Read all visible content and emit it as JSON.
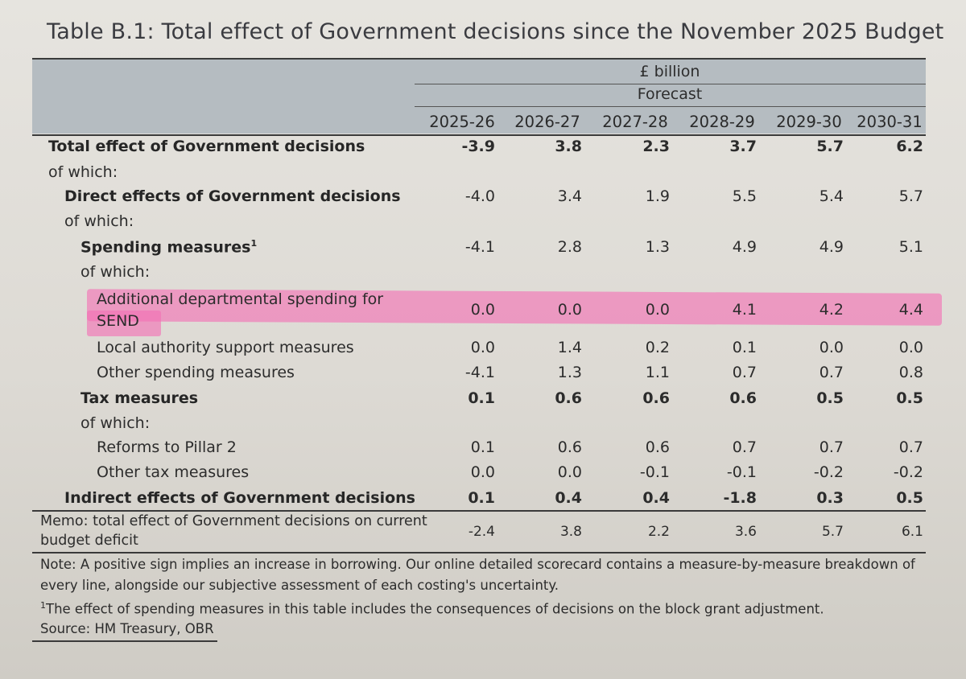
{
  "title": "Table B.1: Total effect of Government decisions since the November 2025 Budget",
  "header": {
    "units": "£ billion",
    "forecast": "Forecast",
    "years": [
      "2025-26",
      "2026-27",
      "2027-28",
      "2028-29",
      "2029-30",
      "2030-31"
    ]
  },
  "rows": [
    {
      "label": "Total effect of Government decisions",
      "values": [
        "-3.9",
        "3.8",
        "2.3",
        "3.7",
        "5.7",
        "6.2"
      ]
    },
    {
      "label": "of which:"
    },
    {
      "label": "Direct effects of Government decisions",
      "values": [
        "-4.0",
        "3.4",
        "1.9",
        "5.5",
        "5.4",
        "5.7"
      ]
    },
    {
      "label": "of which:"
    },
    {
      "label": "Spending measures",
      "sup": "1",
      "values": [
        "-4.1",
        "2.8",
        "1.3",
        "4.9",
        "4.9",
        "5.1"
      ]
    },
    {
      "label": "of which:"
    },
    {
      "label": "Additional departmental spending for",
      "label2": "SEND",
      "values": [
        "0.0",
        "0.0",
        "0.0",
        "4.1",
        "4.2",
        "4.4"
      ]
    },
    {
      "label": "Local authority support measures",
      "values": [
        "0.0",
        "1.4",
        "0.2",
        "0.1",
        "0.0",
        "0.0"
      ]
    },
    {
      "label": "Other spending measures",
      "values": [
        "-4.1",
        "1.3",
        "1.1",
        "0.7",
        "0.7",
        "0.8"
      ]
    },
    {
      "label": "Tax measures",
      "values": [
        "0.1",
        "0.6",
        "0.6",
        "0.6",
        "0.5",
        "0.5"
      ]
    },
    {
      "label": "of which:"
    },
    {
      "label": "Reforms to Pillar 2",
      "values": [
        "0.1",
        "0.6",
        "0.6",
        "0.7",
        "0.7",
        "0.7"
      ]
    },
    {
      "label": "Other tax measures",
      "values": [
        "0.0",
        "0.0",
        "-0.1",
        "-0.1",
        "-0.2",
        "-0.2"
      ]
    },
    {
      "label": "Indirect effects of Government decisions",
      "values": [
        "0.1",
        "0.4",
        "0.4",
        "-1.8",
        "0.3",
        "0.5"
      ]
    }
  ],
  "memo": {
    "label_line1": "Memo: total effect of Government decisions on current",
    "label_line2": "budget deficit",
    "values": [
      "-2.4",
      "3.8",
      "2.2",
      "3.6",
      "5.7",
      "6.1"
    ]
  },
  "notes": {
    "note_line1": "Note: A positive sign implies an increase in borrowing. Our online detailed scorecard contains a measure-by-measure breakdown of",
    "note_line2": "every line, alongside our subjective assessment of each costing's uncertainty.",
    "footnote_marker": "1",
    "footnote": "The effect of spending measures in this table includes the consequences of decisions on the block grant adjustment.",
    "source": "Source: HM Treasury, OBR"
  },
  "colors": {
    "highlight": "#f36fb4",
    "header_band": "#b5bcc1"
  }
}
